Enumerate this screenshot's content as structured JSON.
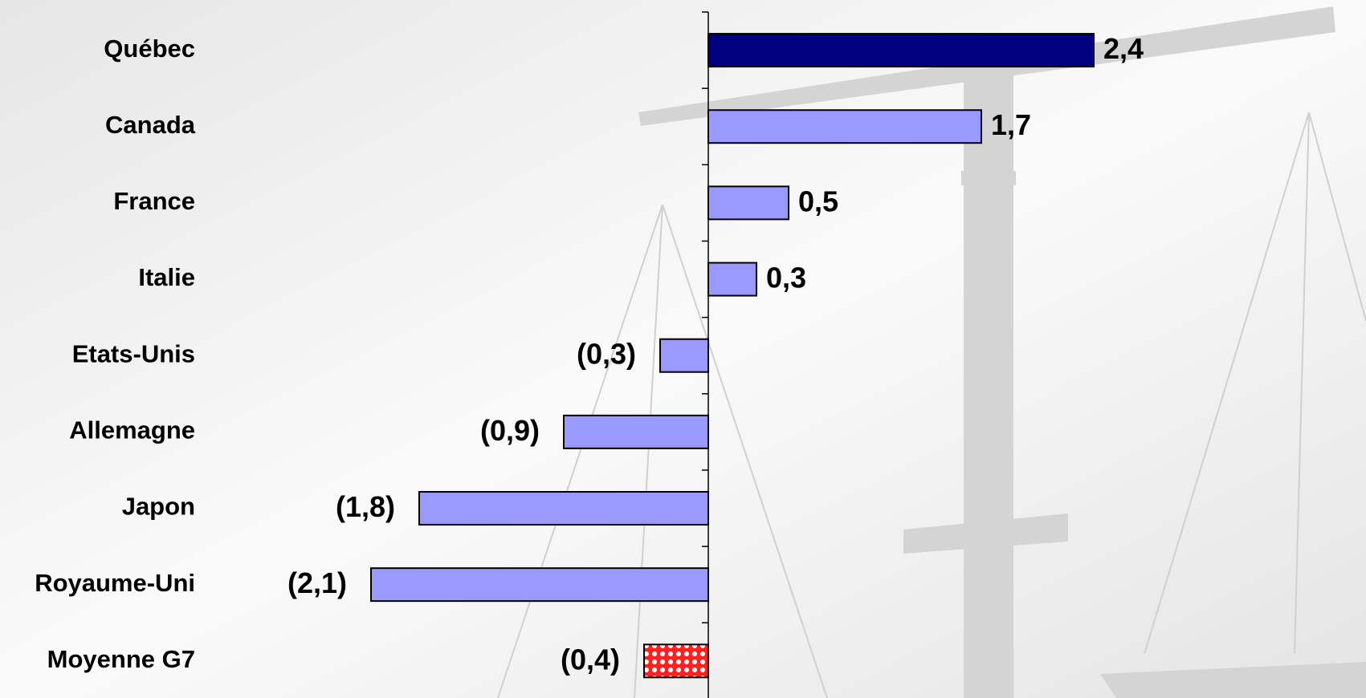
{
  "chart_data": {
    "type": "hbar",
    "categories": [
      "Québec",
      "Canada",
      "France",
      "Italie",
      "Etats-Unis",
      "Allemagne",
      "Japon",
      "Royaume-Uni",
      "Moyenne G7"
    ],
    "values": [
      2.4,
      1.7,
      0.5,
      0.3,
      -0.3,
      -0.9,
      -1.8,
      -2.1,
      -0.4
    ],
    "value_labels": [
      "2,4",
      "1,7",
      "0,5",
      "0,3",
      "(0,3)",
      "(0,9)",
      "(1,8)",
      "(2,1)",
      "(0,4)"
    ],
    "colors": [
      "#000080",
      "#9999ff",
      "#9999ff",
      "#9999ff",
      "#9999ff",
      "#9999ff",
      "#9999ff",
      "#9999ff",
      "#ff2020"
    ],
    "xlim": [
      -2.4,
      2.4
    ]
  }
}
